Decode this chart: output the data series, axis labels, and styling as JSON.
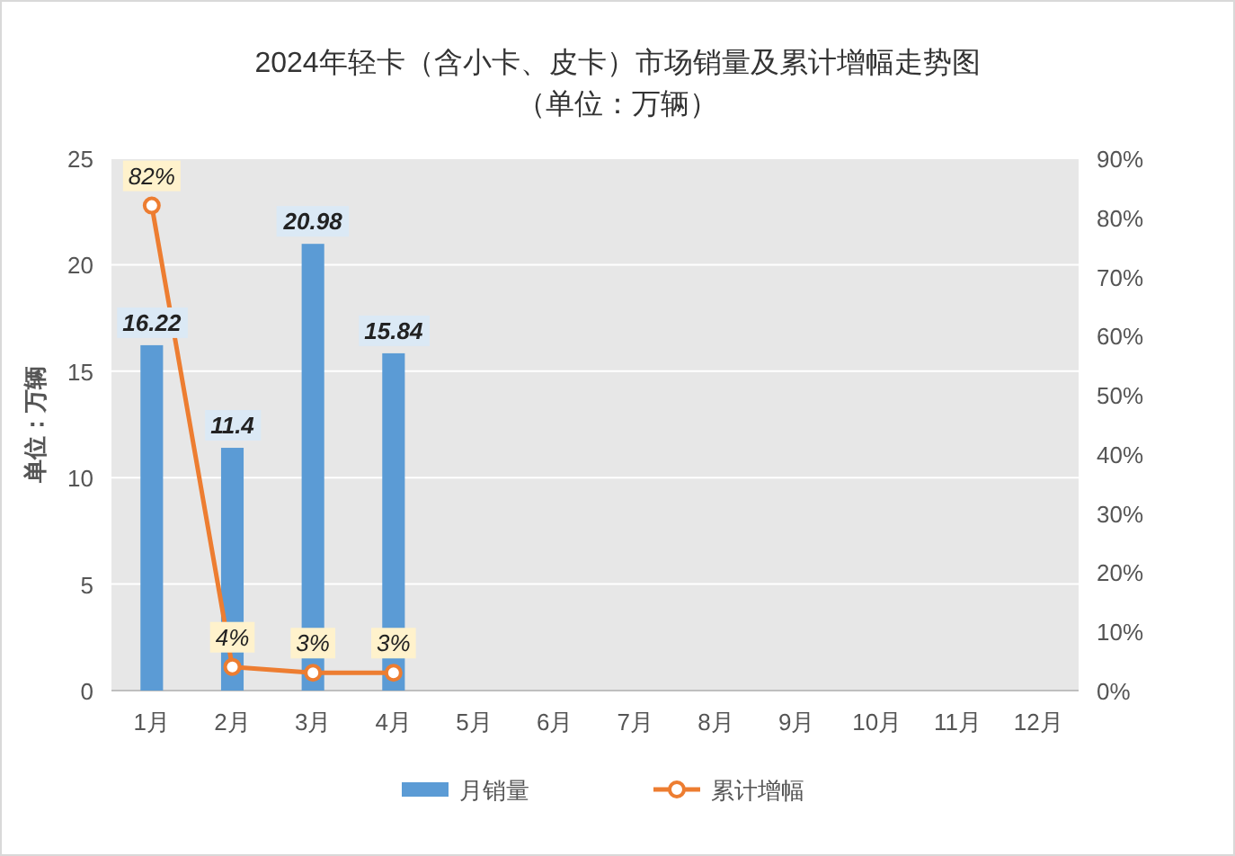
{
  "chart_data": {
    "type": "bar",
    "title": "2024年轻卡（含小卡、皮卡）市场销量及累计增幅走势图",
    "subtitle": "（单位：万辆）",
    "ylabel": "单位：万辆",
    "categories": [
      "1月",
      "2月",
      "3月",
      "4月",
      "5月",
      "6月",
      "7月",
      "8月",
      "9月",
      "10月",
      "11月",
      "12月"
    ],
    "series": [
      {
        "name": "月销量",
        "color": "#5b9bd5",
        "values": [
          16.22,
          11.4,
          20.98,
          15.84,
          null,
          null,
          null,
          null,
          null,
          null,
          null,
          null
        ],
        "value_labels": [
          "16.22",
          "11.4",
          "20.98",
          "15.84",
          null,
          null,
          null,
          null,
          null,
          null,
          null,
          null
        ]
      },
      {
        "name": "累计增幅",
        "type": "line",
        "axis": "y2",
        "color": "#ed7d31",
        "marker": "circle",
        "values": [
          82,
          4,
          3,
          3,
          null,
          null,
          null,
          null,
          null,
          null,
          null,
          null
        ],
        "value_labels": [
          "82%",
          "4%",
          "3%",
          "3%",
          null,
          null,
          null,
          null,
          null,
          null,
          null,
          null
        ]
      }
    ],
    "ylim": [
      0,
      25
    ],
    "yticks": [
      0,
      5,
      10,
      15,
      20,
      25
    ],
    "y2lim": [
      0,
      90
    ],
    "y2ticks": [
      {
        "value": 0,
        "label": "0%"
      },
      {
        "value": 10,
        "label": "10%"
      },
      {
        "value": 20,
        "label": "20%"
      },
      {
        "value": 30,
        "label": "30%"
      },
      {
        "value": 40,
        "label": "40%"
      },
      {
        "value": 50,
        "label": "50%"
      },
      {
        "value": 60,
        "label": "60%"
      },
      {
        "value": 70,
        "label": "70%"
      },
      {
        "value": 80,
        "label": "80%"
      },
      {
        "value": 90,
        "label": "90%"
      }
    ],
    "grid": "y",
    "legend": "bottom"
  }
}
